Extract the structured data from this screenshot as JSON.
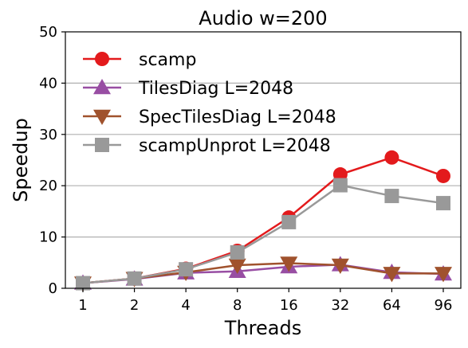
{
  "chart_data": {
    "type": "line",
    "title": "Audio w=200",
    "xlabel": "Threads",
    "ylabel": "Speedup",
    "categories": [
      "1",
      "2",
      "4",
      "8",
      "16",
      "32",
      "64",
      "96"
    ],
    "ylim": [
      0,
      50
    ],
    "yticks": [
      0,
      10,
      20,
      30,
      40,
      50
    ],
    "grid": "horizontal",
    "legend_position": "upper-left",
    "series": [
      {
        "name": "scamp",
        "color": "#e31a1c",
        "marker": "circle",
        "values": [
          1.0,
          1.9,
          3.8,
          7.3,
          13.8,
          22.2,
          25.5,
          21.9
        ]
      },
      {
        "name": "TilesDiag L=2048",
        "color": "#984ea3",
        "marker": "triangle-up",
        "values": [
          1.0,
          1.8,
          3.0,
          3.3,
          4.2,
          4.6,
          3.1,
          2.8
        ]
      },
      {
        "name": "SpecTilesDiag L=2048",
        "color": "#a0522d",
        "marker": "triangle-down",
        "values": [
          1.0,
          1.9,
          3.1,
          4.5,
          4.9,
          4.5,
          2.9,
          2.9
        ]
      },
      {
        "name": "scampUnprot L=2048",
        "color": "#999999",
        "marker": "square",
        "values": [
          1.0,
          1.9,
          3.7,
          7.0,
          12.9,
          20.1,
          18.0,
          16.6
        ]
      }
    ]
  }
}
